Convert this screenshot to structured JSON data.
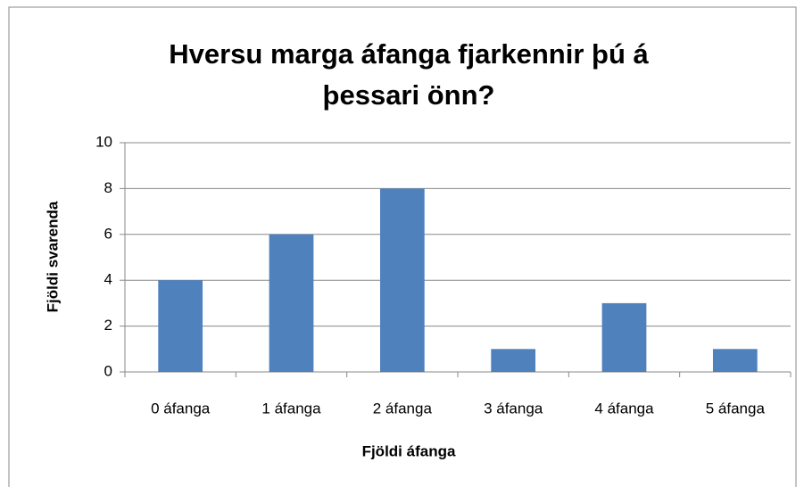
{
  "chart_data": {
    "type": "bar",
    "title": "Hversu marga áfanga fjarkennir þú á þessari önn?",
    "x_label": "Fjöldi áfanga",
    "y_label": "Fjöldi svarenda",
    "categories": [
      "0 áfanga",
      "1 áfanga",
      "2 áfanga",
      "3 áfanga",
      "4 áfanga",
      "5 áfanga"
    ],
    "values": [
      4,
      6,
      8,
      1,
      3,
      1
    ],
    "color": "#4f81bd",
    "ylim": [
      0,
      10
    ],
    "yticks": [
      0,
      2,
      4,
      6,
      8,
      10
    ],
    "grid": true
  }
}
